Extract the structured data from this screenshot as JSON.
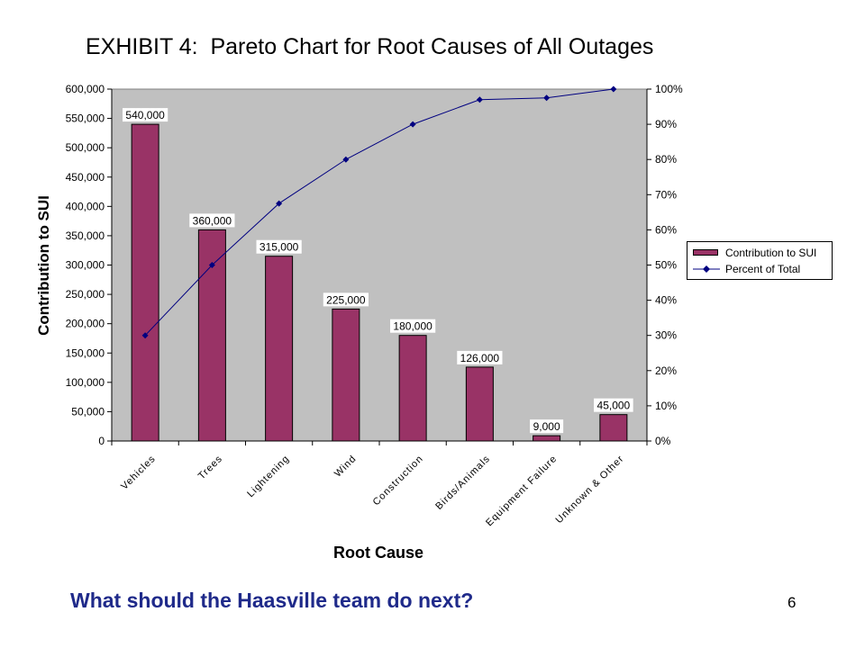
{
  "slide": {
    "title": "EXHIBIT 4:  Pareto Chart for Root Causes of All Outages",
    "question": "What should the Haasville team do next?",
    "page_number": "6"
  },
  "colors": {
    "bar_fill": "#993366",
    "line": "#000080",
    "plot_background": "#c0c0c0",
    "question_text": "#1f2a8a"
  },
  "chart_data": {
    "type": "bar",
    "title": "EXHIBIT 4:  Pareto Chart for Root Causes of All Outages",
    "xlabel": "Root Cause",
    "ylabel": "Contribution to SUI",
    "categories": [
      "Vehicles",
      "Trees",
      "Lightening",
      "Wind",
      "Construction",
      "Birds/Animals",
      "Equipment Failure",
      "Unknown & Other"
    ],
    "series": [
      {
        "name": "Contribution to SUI",
        "type": "bar",
        "axis": "left",
        "values": [
          540000,
          360000,
          315000,
          225000,
          180000,
          126000,
          9000,
          45000
        ],
        "data_labels": [
          "540,000",
          "360,000",
          "315,000",
          "225,000",
          "180,000",
          "126,000",
          "9,000",
          "45,000"
        ]
      },
      {
        "name": "Percent of Total",
        "type": "line",
        "axis": "right",
        "values": [
          30,
          50,
          67.5,
          80,
          90,
          97,
          97.5,
          100
        ]
      }
    ],
    "ylim": [
      0,
      600000
    ],
    "y_ticks": [
      "0",
      "50,000",
      "100,000",
      "150,000",
      "200,000",
      "250,000",
      "300,000",
      "350,000",
      "400,000",
      "450,000",
      "500,000",
      "550,000",
      "600,000"
    ],
    "y2lim": [
      0,
      100
    ],
    "y2_ticks": [
      "0%",
      "10%",
      "20%",
      "30%",
      "40%",
      "50%",
      "60%",
      "70%",
      "80%",
      "90%",
      "100%"
    ],
    "grid": false,
    "legend_position": "right"
  }
}
